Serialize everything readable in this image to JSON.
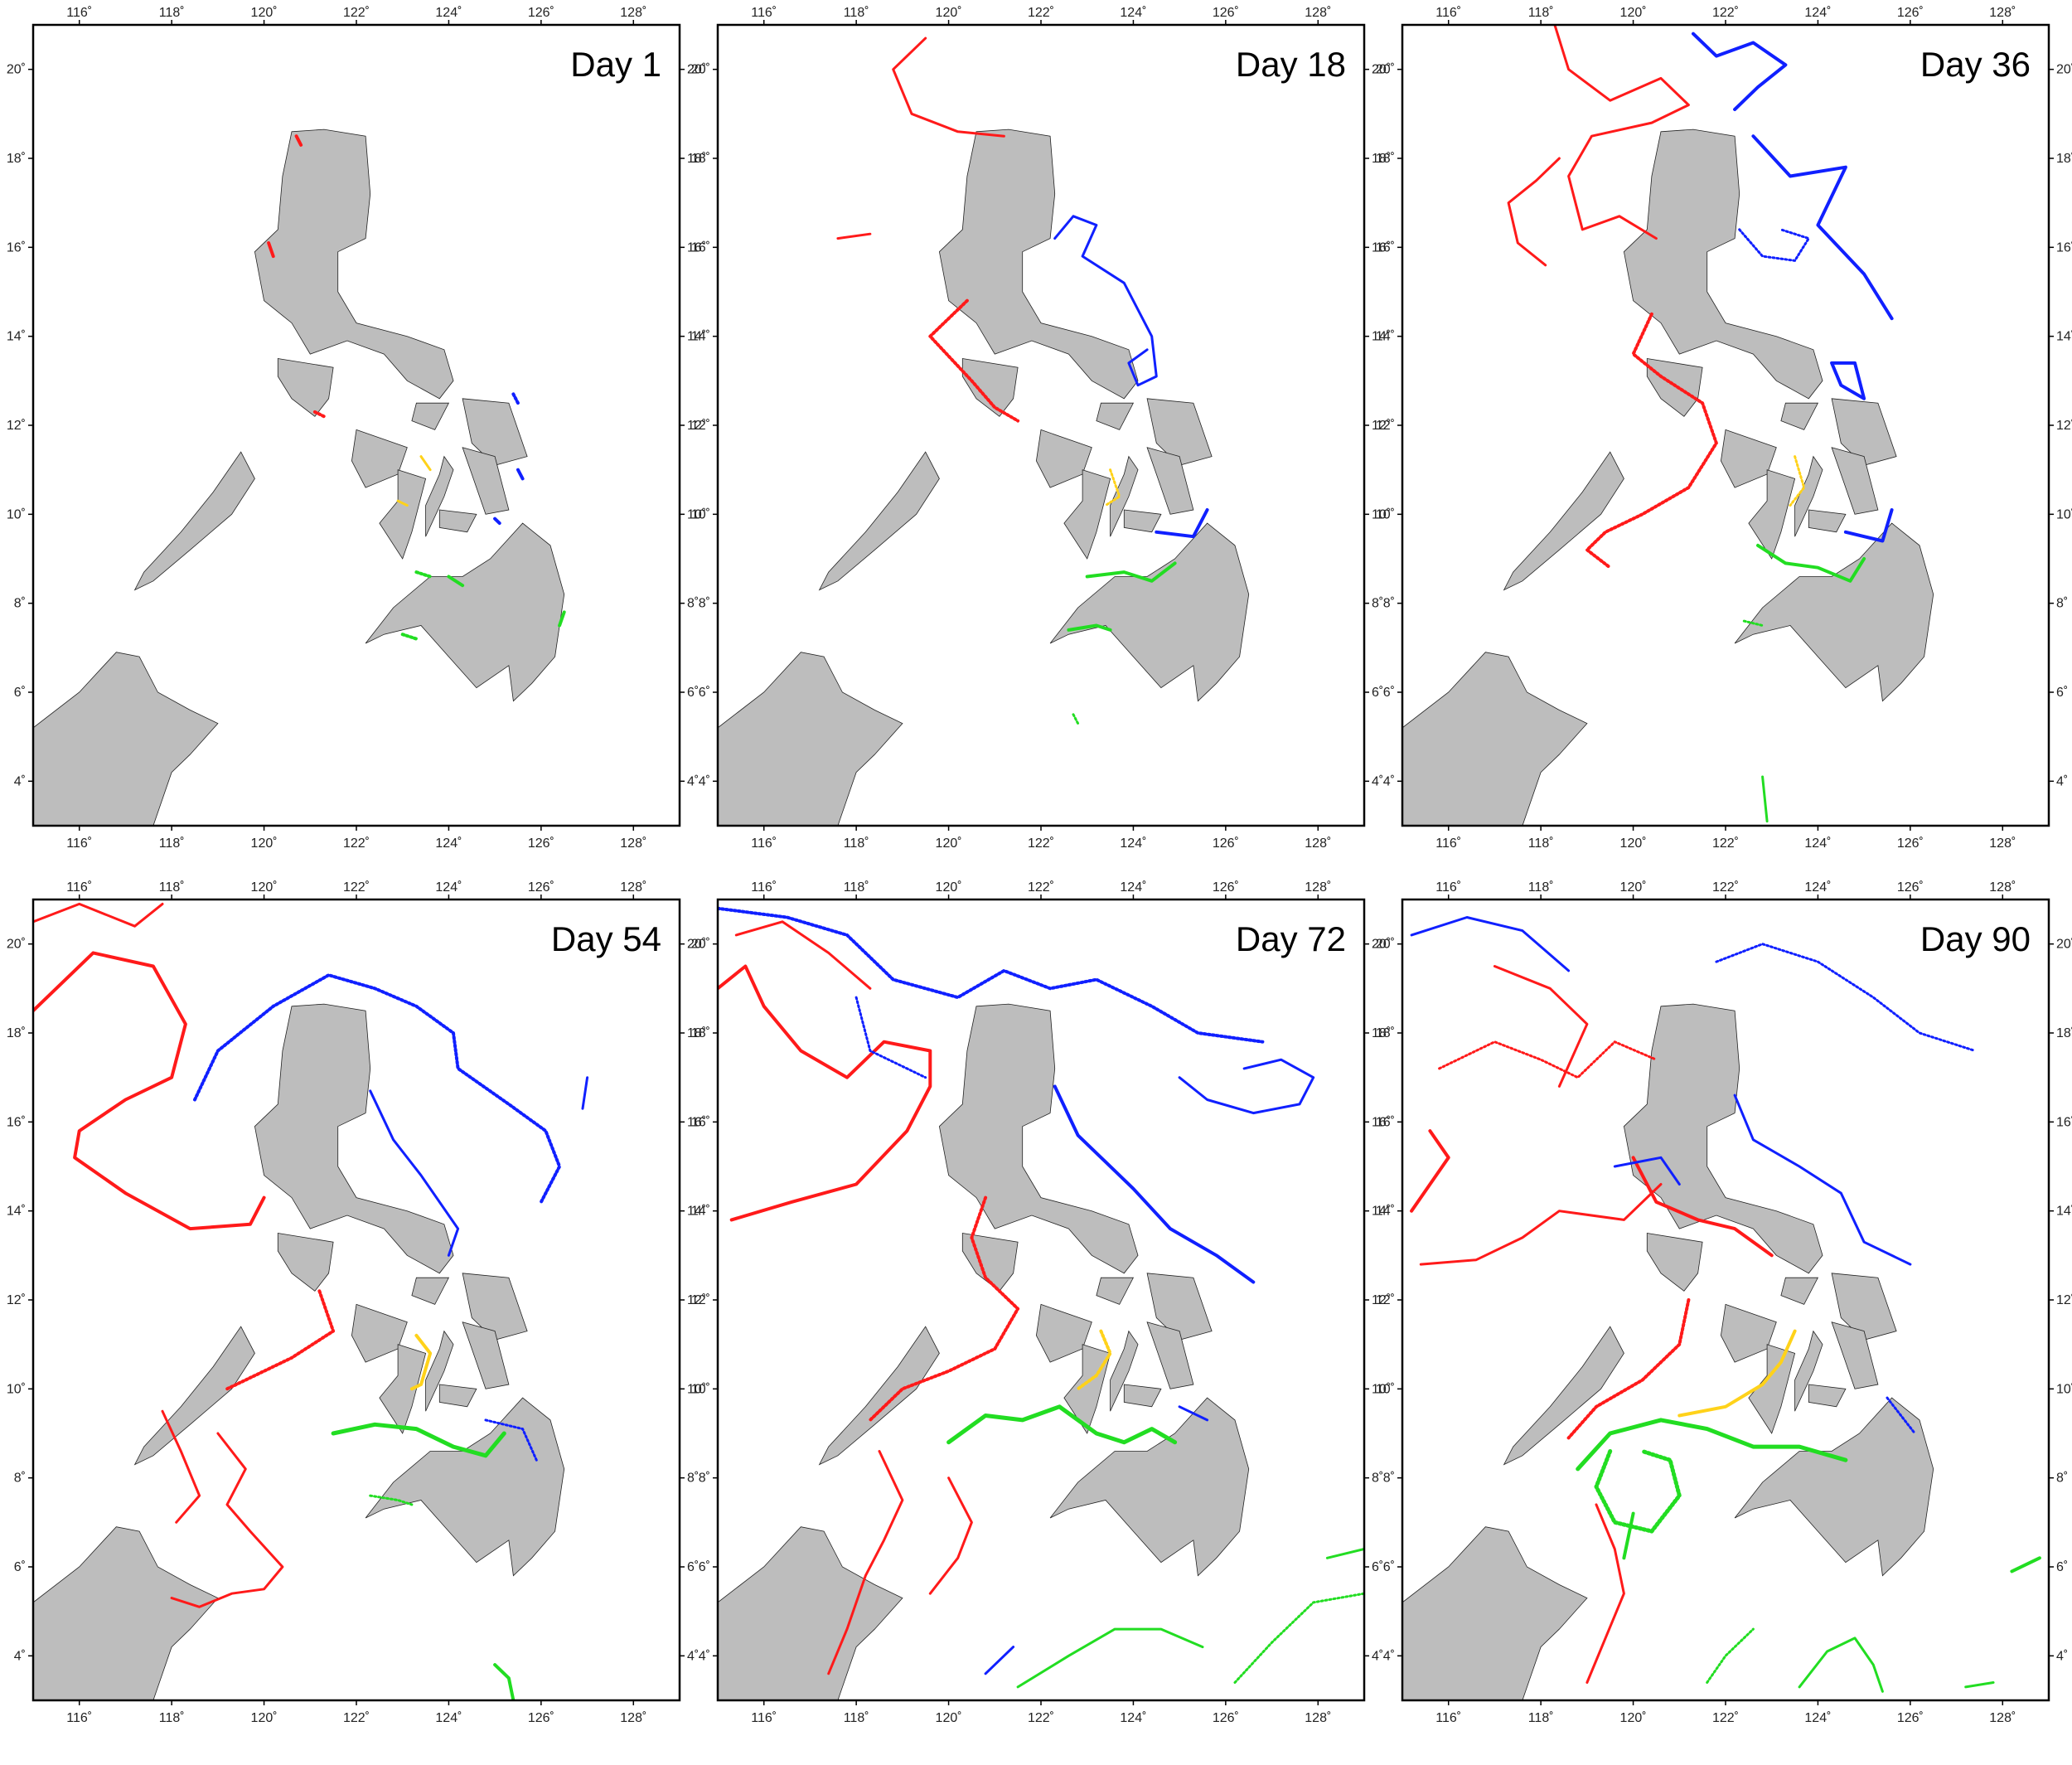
{
  "figure": {
    "lon_ticks": [
      "116˚",
      "118˚",
      "120˚",
      "122˚",
      "124˚",
      "126˚",
      "128˚"
    ],
    "lat_ticks": [
      "4˚",
      "6˚",
      "8˚",
      "10˚",
      "12˚",
      "14˚",
      "16˚",
      "18˚",
      "20˚"
    ],
    "lon_range": [
      115,
      129
    ],
    "lat_range": [
      3,
      21
    ],
    "land_color": "#bdbdbd",
    "colors": {
      "red": "#ff1a1a",
      "blue": "#1020ff",
      "green": "#22dd22",
      "yellow": "#ffd21a"
    }
  },
  "panels": [
    {
      "day_label": "Day 1"
    },
    {
      "day_label": "Day 18"
    },
    {
      "day_label": "Day 36"
    },
    {
      "day_label": "Day 54"
    },
    {
      "day_label": "Day 72"
    },
    {
      "day_label": "Day 90"
    }
  ]
}
